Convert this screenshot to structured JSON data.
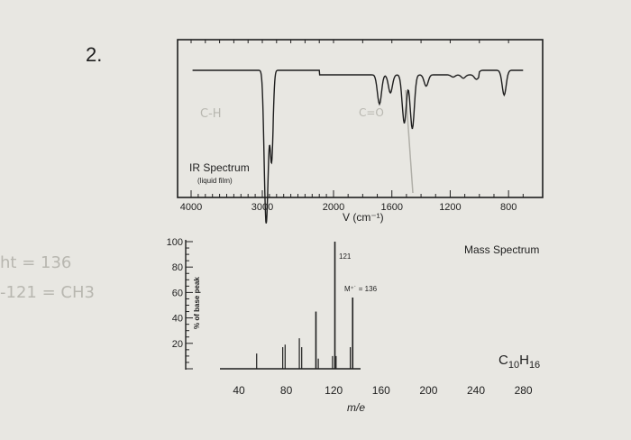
{
  "problem_number": "2.",
  "notes": {
    "left_line1": "ht = 136",
    "left_line2": "-121 = CH3",
    "ch_label": "C-H",
    "co_label": "C=O"
  },
  "chart_data": [
    {
      "type": "line",
      "title": "IR Spectrum",
      "subtitle": "(liquid film)",
      "xlabel": "V (cm⁻¹)",
      "x_ticks": [
        4000,
        3000,
        2000,
        1600,
        1200,
        800
      ],
      "xlim": [
        4000,
        650
      ],
      "ylim": [
        0,
        100
      ],
      "reversed_x": true,
      "grid": false,
      "absorptions": [
        {
          "x": 2960,
          "y": 5
        },
        {
          "x": 2930,
          "y": 8
        },
        {
          "x": 2870,
          "y": 12
        },
        {
          "x": 1685,
          "y": 62
        },
        {
          "x": 1610,
          "y": 72
        },
        {
          "x": 1515,
          "y": 45
        },
        {
          "x": 1460,
          "y": 40
        },
        {
          "x": 1365,
          "y": 78
        },
        {
          "x": 1265,
          "y": 88
        },
        {
          "x": 1180,
          "y": 86
        },
        {
          "x": 1110,
          "y": 85
        },
        {
          "x": 1020,
          "y": 84
        },
        {
          "x": 830,
          "y": 70
        }
      ]
    },
    {
      "type": "bar",
      "title": "Mass Spectrum",
      "formula_main": "C",
      "formula_sub1": "10",
      "formula_h": "H",
      "formula_sub2": "16",
      "xlabel": "m/e",
      "ylabel": "% of base peak",
      "x_ticks": [
        40,
        80,
        120,
        160,
        200,
        240,
        280
      ],
      "y_ticks": [
        20,
        40,
        60,
        80,
        100
      ],
      "xlim": [
        15,
        300
      ],
      "ylim": [
        0,
        100
      ],
      "annotations": [
        {
          "text": "121",
          "x": 121
        },
        {
          "text": "M⁺˙ = 136",
          "x": 136
        }
      ],
      "peaks": [
        {
          "x": 55,
          "y": 12
        },
        {
          "x": 77,
          "y": 17
        },
        {
          "x": 79,
          "y": 19
        },
        {
          "x": 91,
          "y": 24
        },
        {
          "x": 93,
          "y": 17
        },
        {
          "x": 105,
          "y": 45
        },
        {
          "x": 107,
          "y": 8
        },
        {
          "x": 119,
          "y": 10
        },
        {
          "x": 121,
          "y": 100
        },
        {
          "x": 122,
          "y": 10
        },
        {
          "x": 134,
          "y": 17
        },
        {
          "x": 136,
          "y": 56
        }
      ]
    }
  ]
}
